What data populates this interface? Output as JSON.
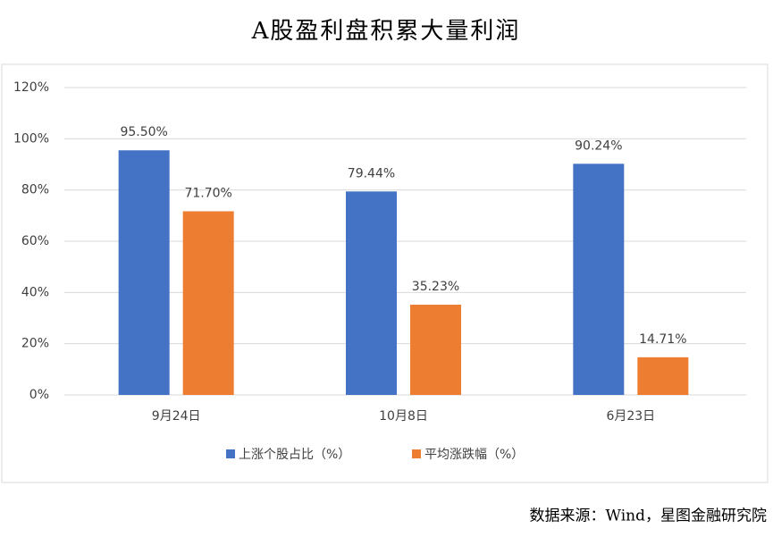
{
  "chart_data": {
    "type": "bar",
    "title": "A股盈利盘积累大量利润",
    "categories": [
      "9月24日",
      "10月8日",
      "6月23日"
    ],
    "series": [
      {
        "name": "上涨个股占比（%）",
        "color": "#4472c4",
        "values": [
          95.5,
          79.44,
          90.24
        ],
        "value_labels": [
          "95.50%",
          "79.44%",
          "90.24%"
        ]
      },
      {
        "name": "平均涨跌幅（%）",
        "color": "#ed7d31",
        "values": [
          71.7,
          35.23,
          14.71
        ],
        "value_labels": [
          "71.70%",
          "35.23%",
          "14.71%"
        ]
      }
    ],
    "ylim": [
      0,
      120
    ],
    "yticks": [
      {
        "value": 0,
        "label": "0%"
      },
      {
        "value": 20,
        "label": "20%"
      },
      {
        "value": 40,
        "label": "40%"
      },
      {
        "value": 60,
        "label": "60%"
      },
      {
        "value": 80,
        "label": "80%"
      },
      {
        "value": 100,
        "label": "100%"
      },
      {
        "value": 120,
        "label": "120%"
      }
    ],
    "grid": true,
    "legend": "bottom",
    "source": "数据来源：Wind，星图金融研究院"
  }
}
